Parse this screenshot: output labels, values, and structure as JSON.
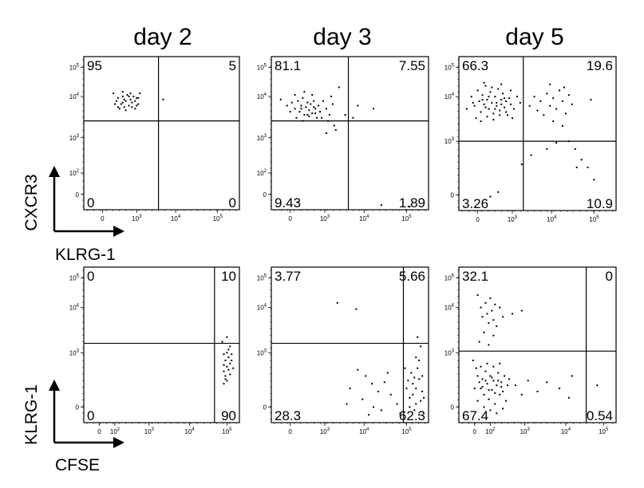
{
  "columns": [
    "day 2",
    "day 3",
    "day 5"
  ],
  "legend_top": {
    "y_label": "CXCR3",
    "x_label": "KLRG-1"
  },
  "legend_bottom": {
    "y_label": "KLRG-1",
    "x_label": "CFSE"
  },
  "chart_data": [
    {
      "type": "scatter",
      "title": "day 2",
      "row": "top",
      "col": 0,
      "xlabel": "KLRG-1",
      "ylabel": "CXCR3",
      "x_ticks": [
        "0",
        "10^3",
        "10^4",
        "10^5"
      ],
      "y_ticks": [
        "0",
        "10^2",
        "10^3",
        "10^4",
        "10^5"
      ],
      "quadrants": {
        "top_left": "95",
        "top_right": "5",
        "bottom_left": "0",
        "bottom_right": "0"
      },
      "gate_x": 0.48,
      "gate_y": 0.58,
      "points": [
        [
          0.19,
          0.76
        ],
        [
          0.21,
          0.71
        ],
        [
          0.22,
          0.73
        ],
        [
          0.24,
          0.69
        ],
        [
          0.25,
          0.74
        ],
        [
          0.26,
          0.67
        ],
        [
          0.27,
          0.71
        ],
        [
          0.28,
          0.75
        ],
        [
          0.29,
          0.68
        ],
        [
          0.3,
          0.72
        ],
        [
          0.31,
          0.7
        ],
        [
          0.32,
          0.74
        ],
        [
          0.33,
          0.66
        ],
        [
          0.34,
          0.73
        ],
        [
          0.35,
          0.69
        ],
        [
          0.36,
          0.76
        ],
        [
          0.23,
          0.66
        ],
        [
          0.25,
          0.7
        ],
        [
          0.27,
          0.65
        ],
        [
          0.29,
          0.74
        ],
        [
          0.31,
          0.67
        ],
        [
          0.33,
          0.71
        ],
        [
          0.35,
          0.73
        ],
        [
          0.2,
          0.69
        ],
        [
          0.22,
          0.67
        ],
        [
          0.26,
          0.72
        ],
        [
          0.3,
          0.76
        ],
        [
          0.34,
          0.68
        ],
        [
          0.51,
          0.72
        ],
        [
          0.25,
          0.77
        ]
      ]
    },
    {
      "type": "scatter",
      "title": "day 3",
      "row": "top",
      "col": 1,
      "xlabel": "KLRG-1",
      "ylabel": "CXCR3",
      "x_ticks": [
        "0",
        "10^3",
        "10^4",
        "10^5"
      ],
      "y_ticks": [
        "0",
        "10^2",
        "10^3",
        "10^4",
        "10^5"
      ],
      "quadrants": {
        "top_left": "81.1",
        "top_right": "7.55",
        "bottom_left": "9.43",
        "bottom_right": "1.89"
      },
      "gate_x": 0.49,
      "gate_y": 0.58,
      "points": [
        [
          0.06,
          0.72
        ],
        [
          0.1,
          0.68
        ],
        [
          0.13,
          0.7
        ],
        [
          0.15,
          0.66
        ],
        [
          0.17,
          0.71
        ],
        [
          0.18,
          0.64
        ],
        [
          0.19,
          0.68
        ],
        [
          0.2,
          0.73
        ],
        [
          0.21,
          0.62
        ],
        [
          0.22,
          0.67
        ],
        [
          0.23,
          0.7
        ],
        [
          0.24,
          0.65
        ],
        [
          0.25,
          0.69
        ],
        [
          0.26,
          0.63
        ],
        [
          0.27,
          0.71
        ],
        [
          0.28,
          0.66
        ],
        [
          0.29,
          0.6
        ],
        [
          0.3,
          0.68
        ],
        [
          0.31,
          0.64
        ],
        [
          0.33,
          0.71
        ],
        [
          0.35,
          0.66
        ],
        [
          0.37,
          0.62
        ],
        [
          0.39,
          0.69
        ],
        [
          0.12,
          0.64
        ],
        [
          0.16,
          0.6
        ],
        [
          0.2,
          0.58
        ],
        [
          0.24,
          0.61
        ],
        [
          0.28,
          0.63
        ],
        [
          0.32,
          0.6
        ],
        [
          0.36,
          0.58
        ],
        [
          0.4,
          0.55
        ],
        [
          0.38,
          0.74
        ],
        [
          0.43,
          0.8
        ],
        [
          0.47,
          0.62
        ],
        [
          0.55,
          0.68
        ],
        [
          0.65,
          0.66
        ],
        [
          0.52,
          0.6
        ],
        [
          0.41,
          0.52
        ],
        [
          0.35,
          0.5
        ],
        [
          0.17,
          0.05
        ],
        [
          0.7,
          0.03
        ],
        [
          0.88,
          0.02
        ],
        [
          0.15,
          0.75
        ],
        [
          0.21,
          0.77
        ],
        [
          0.26,
          0.75
        ],
        [
          0.19,
          0.66
        ],
        [
          0.23,
          0.62
        ],
        [
          0.27,
          0.67
        ]
      ]
    },
    {
      "type": "scatter",
      "title": "day 5",
      "row": "top",
      "col": 2,
      "xlabel": "KLRG-1",
      "ylabel": "CXCR3",
      "x_ticks": [
        "0",
        "10^3",
        "10^4",
        "10^5"
      ],
      "y_ticks": [
        "0",
        "10^3",
        "10^4",
        "10^5"
      ],
      "quadrants": {
        "top_left": "66.3",
        "top_right": "19.6",
        "bottom_left": "3.26",
        "bottom_right": "10.9"
      },
      "gate_x": 0.41,
      "gate_y": 0.45,
      "points": [
        [
          0.05,
          0.66
        ],
        [
          0.08,
          0.74
        ],
        [
          0.1,
          0.68
        ],
        [
          0.12,
          0.78
        ],
        [
          0.13,
          0.71
        ],
        [
          0.14,
          0.64
        ],
        [
          0.15,
          0.75
        ],
        [
          0.16,
          0.69
        ],
        [
          0.17,
          0.81
        ],
        [
          0.18,
          0.72
        ],
        [
          0.19,
          0.66
        ],
        [
          0.2,
          0.77
        ],
        [
          0.21,
          0.7
        ],
        [
          0.22,
          0.63
        ],
        [
          0.23,
          0.74
        ],
        [
          0.24,
          0.68
        ],
        [
          0.25,
          0.79
        ],
        [
          0.26,
          0.65
        ],
        [
          0.27,
          0.72
        ],
        [
          0.28,
          0.76
        ],
        [
          0.29,
          0.67
        ],
        [
          0.3,
          0.71
        ],
        [
          0.31,
          0.62
        ],
        [
          0.32,
          0.73
        ],
        [
          0.33,
          0.69
        ],
        [
          0.35,
          0.66
        ],
        [
          0.37,
          0.74
        ],
        [
          0.39,
          0.7
        ],
        [
          0.11,
          0.6
        ],
        [
          0.14,
          0.58
        ],
        [
          0.18,
          0.61
        ],
        [
          0.22,
          0.59
        ],
        [
          0.26,
          0.62
        ],
        [
          0.3,
          0.64
        ],
        [
          0.34,
          0.6
        ],
        [
          0.09,
          0.7
        ],
        [
          0.16,
          0.83
        ],
        [
          0.21,
          0.8
        ],
        [
          0.27,
          0.82
        ],
        [
          0.33,
          0.78
        ],
        [
          0.45,
          0.68
        ],
        [
          0.48,
          0.74
        ],
        [
          0.5,
          0.65
        ],
        [
          0.52,
          0.71
        ],
        [
          0.54,
          0.62
        ],
        [
          0.56,
          0.76
        ],
        [
          0.58,
          0.68
        ],
        [
          0.6,
          0.73
        ],
        [
          0.62,
          0.66
        ],
        [
          0.64,
          0.78
        ],
        [
          0.66,
          0.71
        ],
        [
          0.68,
          0.63
        ],
        [
          0.7,
          0.75
        ],
        [
          0.72,
          0.69
        ],
        [
          0.6,
          0.58
        ],
        [
          0.66,
          0.55
        ],
        [
          0.7,
          0.45
        ],
        [
          0.74,
          0.4
        ],
        [
          0.78,
          0.33
        ],
        [
          0.82,
          0.28
        ],
        [
          0.86,
          0.2
        ],
        [
          0.75,
          0.28
        ],
        [
          0.62,
          0.44
        ],
        [
          0.56,
          0.4
        ],
        [
          0.4,
          0.3
        ],
        [
          0.46,
          0.36
        ],
        [
          0.67,
          0.8
        ],
        [
          0.58,
          0.82
        ],
        [
          0.84,
          0.72
        ],
        [
          0.25,
          0.12
        ],
        [
          0.2,
          0.09
        ],
        [
          0.24,
          0.7
        ],
        [
          0.17,
          0.67
        ],
        [
          0.29,
          0.73
        ],
        [
          0.15,
          0.72
        ],
        [
          0.19,
          0.74
        ],
        [
          0.23,
          0.66
        ],
        [
          0.27,
          0.69
        ]
      ]
    },
    {
      "type": "scatter",
      "title": "day 2",
      "row": "bottom",
      "col": 0,
      "xlabel": "CFSE",
      "ylabel": "KLRG-1",
      "x_ticks": [
        "0",
        "10^2",
        "10^3",
        "10^4",
        "10^5"
      ],
      "y_ticks": [
        "0",
        "10^3",
        "10^4",
        "10^5"
      ],
      "quadrants": {
        "top_left": "0",
        "top_right": "10",
        "bottom_left": "0",
        "bottom_right": "90"
      },
      "gate_x": 0.84,
      "gate_y": 0.51,
      "points": [
        [
          0.9,
          0.44
        ],
        [
          0.91,
          0.4
        ],
        [
          0.92,
          0.36
        ],
        [
          0.9,
          0.33
        ],
        [
          0.93,
          0.42
        ],
        [
          0.94,
          0.38
        ],
        [
          0.91,
          0.3
        ],
        [
          0.92,
          0.27
        ],
        [
          0.93,
          0.34
        ],
        [
          0.95,
          0.4
        ],
        [
          0.9,
          0.37
        ],
        [
          0.94,
          0.31
        ],
        [
          0.92,
          0.45
        ],
        [
          0.91,
          0.28
        ],
        [
          0.96,
          0.35
        ],
        [
          0.93,
          0.47
        ],
        [
          0.89,
          0.52
        ],
        [
          0.92,
          0.55
        ],
        [
          0.94,
          0.49
        ],
        [
          0.9,
          0.25
        ],
        [
          0.95,
          0.44
        ]
      ]
    },
    {
      "type": "scatter",
      "title": "day 3",
      "row": "bottom",
      "col": 1,
      "xlabel": "CFSE",
      "ylabel": "KLRG-1",
      "x_ticks": [
        "0",
        "10^3",
        "10^4",
        "10^5"
      ],
      "y_ticks": [
        "0",
        "10^3",
        "10^4",
        "10^5"
      ],
      "quadrants": {
        "top_left": "3.77",
        "top_right": "5.66",
        "bottom_left": "28.3",
        "bottom_right": "62.3"
      },
      "gate_x": 0.84,
      "gate_y": 0.51,
      "points": [
        [
          0.42,
          0.77
        ],
        [
          0.54,
          0.73
        ],
        [
          0.55,
          0.34
        ],
        [
          0.6,
          0.3
        ],
        [
          0.64,
          0.25
        ],
        [
          0.68,
          0.2
        ],
        [
          0.72,
          0.26
        ],
        [
          0.76,
          0.18
        ],
        [
          0.58,
          0.15
        ],
        [
          0.65,
          0.1
        ],
        [
          0.7,
          0.08
        ],
        [
          0.62,
          0.05
        ],
        [
          0.8,
          0.12
        ],
        [
          0.86,
          0.22
        ],
        [
          0.88,
          0.16
        ],
        [
          0.9,
          0.25
        ],
        [
          0.92,
          0.12
        ],
        [
          0.94,
          0.28
        ],
        [
          0.96,
          0.2
        ],
        [
          0.89,
          0.32
        ],
        [
          0.91,
          0.08
        ],
        [
          0.93,
          0.35
        ],
        [
          0.95,
          0.14
        ],
        [
          0.87,
          0.27
        ],
        [
          0.92,
          0.42
        ],
        [
          0.95,
          0.49
        ],
        [
          0.93,
          0.55
        ],
        [
          0.94,
          0.4
        ],
        [
          0.9,
          0.18
        ],
        [
          0.96,
          0.3
        ],
        [
          0.88,
          0.1
        ],
        [
          0.92,
          0.22
        ],
        [
          0.97,
          0.16
        ],
        [
          0.85,
          0.35
        ],
        [
          0.91,
          0.29
        ],
        [
          0.94,
          0.05
        ],
        [
          0.5,
          0.22
        ],
        [
          0.48,
          0.12
        ],
        [
          0.74,
          0.32
        ],
        [
          0.82,
          0.06
        ]
      ]
    },
    {
      "type": "scatter",
      "title": "day 5",
      "row": "bottom",
      "col": 2,
      "xlabel": "CFSE",
      "ylabel": "KLRG-1",
      "x_ticks": [
        "0",
        "10^2",
        "10^3",
        "10^4",
        "10^5"
      ],
      "y_ticks": [
        "0",
        "10^3",
        "10^4",
        "10^5"
      ],
      "quadrants": {
        "top_left": "32.1",
        "top_right": "0",
        "bottom_left": "67.4",
        "bottom_right": "0.54"
      },
      "gate_x": 0.81,
      "gate_y": 0.46,
      "points": [
        [
          0.12,
          0.82
        ],
        [
          0.14,
          0.74
        ],
        [
          0.15,
          0.68
        ],
        [
          0.17,
          0.77
        ],
        [
          0.18,
          0.7
        ],
        [
          0.19,
          0.64
        ],
        [
          0.2,
          0.8
        ],
        [
          0.21,
          0.72
        ],
        [
          0.22,
          0.66
        ],
        [
          0.23,
          0.76
        ],
        [
          0.24,
          0.62
        ],
        [
          0.26,
          0.74
        ],
        [
          0.28,
          0.68
        ],
        [
          0.16,
          0.58
        ],
        [
          0.22,
          0.56
        ],
        [
          0.34,
          0.7
        ],
        [
          0.4,
          0.72
        ],
        [
          0.13,
          0.52
        ],
        [
          0.19,
          0.5
        ],
        [
          0.09,
          0.4
        ],
        [
          0.11,
          0.35
        ],
        [
          0.12,
          0.3
        ],
        [
          0.13,
          0.26
        ],
        [
          0.14,
          0.22
        ],
        [
          0.15,
          0.28
        ],
        [
          0.16,
          0.18
        ],
        [
          0.17,
          0.33
        ],
        [
          0.18,
          0.25
        ],
        [
          0.19,
          0.15
        ],
        [
          0.2,
          0.3
        ],
        [
          0.21,
          0.21
        ],
        [
          0.22,
          0.27
        ],
        [
          0.23,
          0.12
        ],
        [
          0.24,
          0.24
        ],
        [
          0.25,
          0.32
        ],
        [
          0.26,
          0.18
        ],
        [
          0.27,
          0.26
        ],
        [
          0.28,
          0.2
        ],
        [
          0.29,
          0.3
        ],
        [
          0.3,
          0.14
        ],
        [
          0.31,
          0.24
        ],
        [
          0.32,
          0.28
        ],
        [
          0.14,
          0.36
        ],
        [
          0.18,
          0.38
        ],
        [
          0.22,
          0.36
        ],
        [
          0.26,
          0.38
        ],
        [
          0.12,
          0.14
        ],
        [
          0.16,
          0.1
        ],
        [
          0.2,
          0.08
        ],
        [
          0.24,
          0.06
        ],
        [
          0.28,
          0.09
        ],
        [
          0.36,
          0.24
        ],
        [
          0.4,
          0.18
        ],
        [
          0.44,
          0.27
        ],
        [
          0.5,
          0.2
        ],
        [
          0.56,
          0.26
        ],
        [
          0.64,
          0.22
        ],
        [
          0.7,
          0.16
        ],
        [
          0.72,
          0.3
        ],
        [
          0.88,
          0.24
        ],
        [
          0.1,
          0.22
        ],
        [
          0.15,
          0.23
        ],
        [
          0.19,
          0.21
        ],
        [
          0.23,
          0.19
        ],
        [
          0.27,
          0.23
        ],
        [
          0.17,
          0.27
        ],
        [
          0.21,
          0.29
        ],
        [
          0.25,
          0.27
        ]
      ]
    }
  ]
}
